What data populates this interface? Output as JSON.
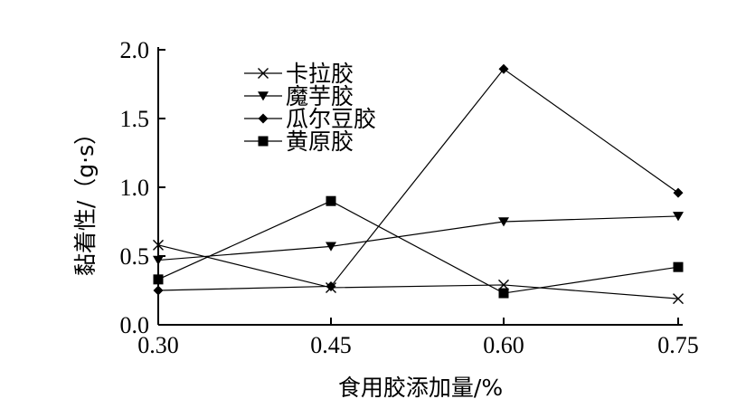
{
  "chart_data": {
    "type": "line",
    "title": "",
    "xlabel": "食用胶添加量/%",
    "ylabel": "黏着性/（g·s）",
    "x": [
      0.3,
      0.45,
      0.6,
      0.75
    ],
    "x_tick_labels": [
      "0.30",
      "0.45",
      "0.60",
      "0.75"
    ],
    "ylim": [
      0.0,
      2.0
    ],
    "y_ticks": [
      0.0,
      0.5,
      1.0,
      1.5,
      2.0
    ],
    "y_tick_labels": [
      "0.0",
      "0.5",
      "1.0",
      "1.5",
      "2.0"
    ],
    "grid": false,
    "legend_position": "top-left",
    "series": [
      {
        "name": "卡拉胶",
        "marker": "x",
        "values": [
          0.58,
          0.27,
          0.29,
          0.19
        ]
      },
      {
        "name": "魔芋胶",
        "marker": "triangle-down",
        "values": [
          0.47,
          0.57,
          0.75,
          0.79
        ]
      },
      {
        "name": "瓜尔豆胶",
        "marker": "diamond",
        "values": [
          0.25,
          0.28,
          1.86,
          0.96
        ]
      },
      {
        "name": "黄原胶",
        "marker": "square",
        "values": [
          0.33,
          0.9,
          0.23,
          0.42
        ]
      }
    ]
  }
}
